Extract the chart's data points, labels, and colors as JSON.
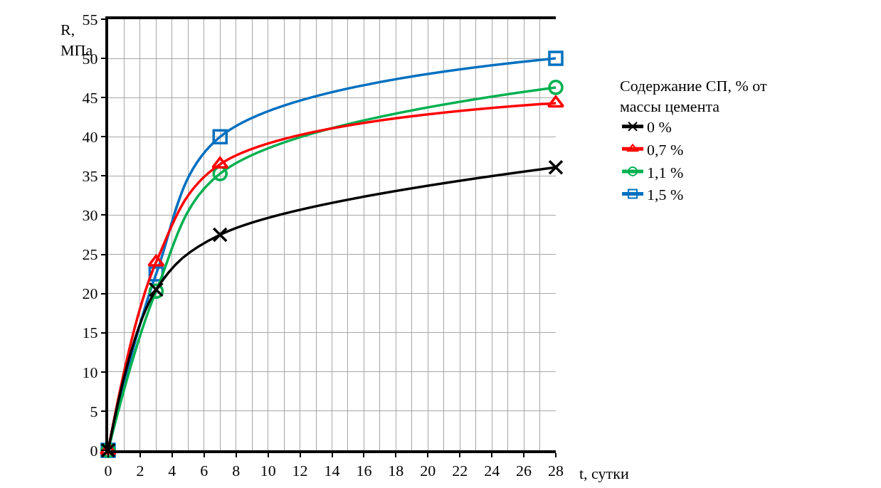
{
  "chart_data": {
    "type": "line",
    "xlabel": "t, сутки",
    "ylabel": "R, МПа",
    "legend_title": "Содержание СП, % от массы цемента",
    "x": [
      0,
      3,
      7,
      28
    ],
    "xlim": [
      0,
      28
    ],
    "xticks": [
      0,
      2,
      4,
      6,
      8,
      10,
      12,
      14,
      16,
      18,
      20,
      22,
      24,
      26,
      28
    ],
    "ylim": [
      0,
      55
    ],
    "yticks": [
      0,
      5,
      10,
      15,
      20,
      25,
      30,
      35,
      40,
      45,
      50,
      55
    ],
    "grid": true,
    "legend": "right",
    "line_style": "solid",
    "series": [
      {
        "name": "0 %",
        "color": "#000000",
        "marker": "cross",
        "values": [
          0,
          20.5,
          27.5,
          36.1
        ]
      },
      {
        "name": "0,7 %",
        "color": "#ff0000",
        "marker": "triangle",
        "values": [
          0,
          24.0,
          36.5,
          44.3
        ]
      },
      {
        "name": "1,1 %",
        "color": "#00b050",
        "marker": "circle",
        "values": [
          0,
          20.3,
          35.3,
          46.3
        ]
      },
      {
        "name": "1,5 %",
        "color": "#0070c0",
        "marker": "square",
        "values": [
          0,
          22.5,
          40.0,
          50.0
        ]
      }
    ]
  }
}
